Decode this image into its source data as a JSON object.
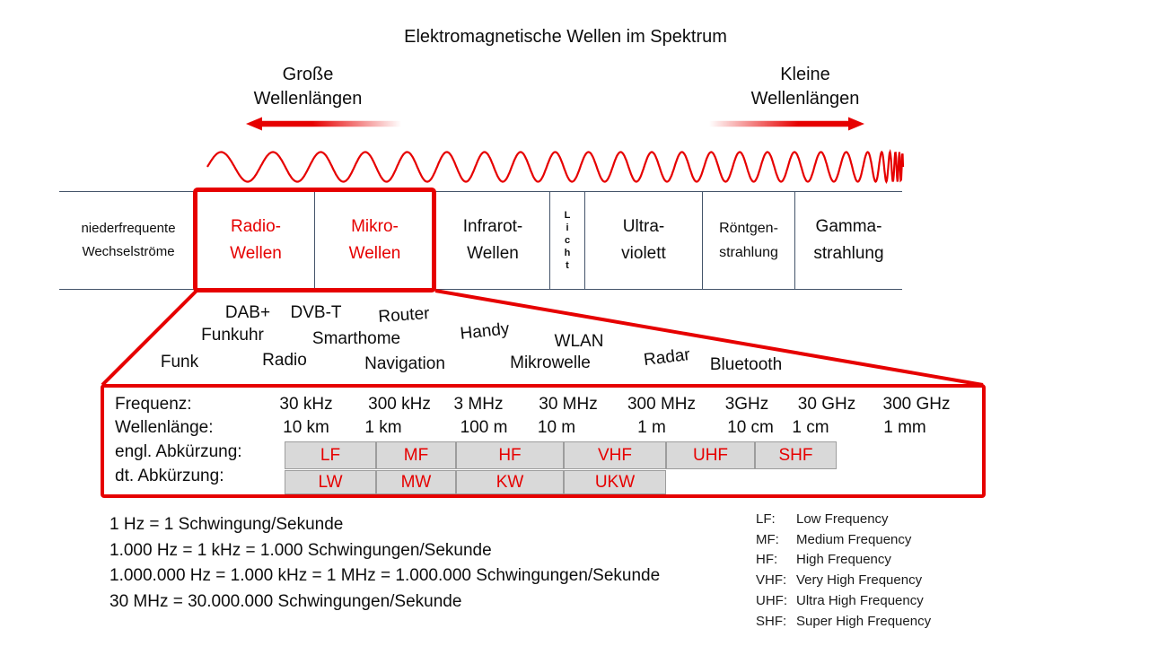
{
  "title": "Elektromagnetische Wellen im Spektrum",
  "arrow_labels": {
    "left": [
      "Große",
      "Wellenlängen"
    ],
    "right": [
      "Kleine",
      "Wellenlängen"
    ]
  },
  "spectrum_bands": [
    {
      "lines": [
        "niederfrequente",
        "Wechselströme"
      ],
      "highlight": false
    },
    {
      "lines": [
        "Radio-",
        "Wellen"
      ],
      "highlight": true
    },
    {
      "lines": [
        "Mikro-",
        "Wellen"
      ],
      "highlight": true
    },
    {
      "lines": [
        "Infrarot-",
        "Wellen"
      ],
      "highlight": false
    },
    {
      "lines": [
        "Licht"
      ],
      "highlight": false
    },
    {
      "lines": [
        "Ultra-",
        "violett"
      ],
      "highlight": false
    },
    {
      "lines": [
        "Röntgen-",
        "strahlung"
      ],
      "highlight": false
    },
    {
      "lines": [
        "Gamma-",
        "strahlung"
      ],
      "highlight": false
    }
  ],
  "devices": [
    "Funk",
    "Funkuhr",
    "DAB+",
    "Radio",
    "DVB-T",
    "Smarthome",
    "Router",
    "Navigation",
    "Handy",
    "Mikrowelle",
    "WLAN",
    "Radar",
    "Bluetooth"
  ],
  "table": {
    "row_labels": [
      "Frequenz:",
      "Wellenlänge:",
      "engl. Abkürzung:",
      "dt. Abkürzung:"
    ],
    "frequencies": [
      "30 kHz",
      "300 kHz",
      "3 MHz",
      "30 MHz",
      "300 MHz",
      "3GHz",
      "30 GHz",
      "300 GHz"
    ],
    "wavelengths": [
      "10 km",
      "1 km",
      "100 m",
      "10 m",
      "1 m",
      "10 cm",
      "1 cm",
      "1 mm"
    ],
    "english_abbreviations": [
      "LF",
      "MF",
      "HF",
      "VHF",
      "UHF",
      "SHF"
    ],
    "german_abbreviations": [
      "LW",
      "MW",
      "KW",
      "UKW"
    ]
  },
  "notes": [
    "1 Hz = 1 Schwingung/Sekunde",
    "1.000 Hz = 1 kHz = 1.000 Schwingungen/Sekunde",
    "1.000.000 Hz = 1.000 kHz = 1 MHz = 1.000.000 Schwingungen/Sekunde",
    "30 MHz = 30.000.000 Schwingungen/Sekunde"
  ],
  "legend": [
    {
      "abbr": "LF:",
      "name": "Low Frequency"
    },
    {
      "abbr": "MF:",
      "name": "Medium Frequency"
    },
    {
      "abbr": "HF:",
      "name": "High Frequency"
    },
    {
      "abbr": "VHF:",
      "name": "Very High Frequency"
    },
    {
      "abbr": "UHF:",
      "name": "Ultra High Frequency"
    },
    {
      "abbr": "SHF:",
      "name": "Super High Frequency"
    }
  ],
  "icons": {
    "left_arrow": "long-wavelength-arrow",
    "right_arrow": "short-wavelength-arrow",
    "wave": "chirp-wave"
  },
  "colors": {
    "red": "#e60000",
    "band_line": "#44546a",
    "gray_fill": "#d9d9d9",
    "gray_border": "#9d9d9d",
    "text": "#111111"
  }
}
